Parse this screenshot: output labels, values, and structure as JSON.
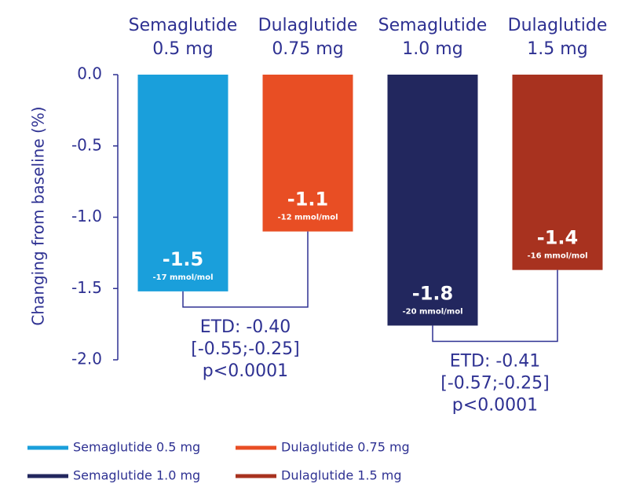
{
  "chart_data": {
    "type": "bar",
    "y_label": "Changing from baseline (%)",
    "categories": [
      "Semaglutide\n0.5 mg",
      "Dulaglutide\n0.75 mg",
      "Semaglutide\n1.0 mg",
      "Dulaglutide\n1.5 mg"
    ],
    "values": [
      -1.52,
      -1.1,
      -1.76,
      -1.37
    ],
    "value_labels": [
      "-1.5",
      "-1.1",
      "-1.8",
      "-1.4"
    ],
    "value_notes": [
      "-17 mmol/mol",
      "-12 mmol/mol",
      "-20 mmol/mol",
      "-16 mmol/mol"
    ],
    "colors": [
      "#1a9fdb",
      "#e84e24",
      "#22275e",
      "#a8321f"
    ],
    "legend": [
      "Semaglutide 0.5 mg",
      "Dulaglutide 0.75 mg",
      "Semaglutide 1.0 mg",
      "Dulaglutide 1.5 mg"
    ],
    "annotations": [
      [
        "ETD: -0.40",
        "[-0.55;-0.25]",
        "p<0.0001"
      ],
      [
        "ETD: -0.41",
        "[-0.57;-0.25]",
        "p<0.0001"
      ]
    ],
    "ylim": [
      0,
      -2.0
    ],
    "yticks": [
      {
        "value": 0,
        "label": "0.0"
      },
      -0.5,
      {
        "value": -1.0,
        "label": "-1.0"
      },
      -1.5,
      {
        "value": -2.0,
        "label": "-2.0"
      }
    ]
  }
}
